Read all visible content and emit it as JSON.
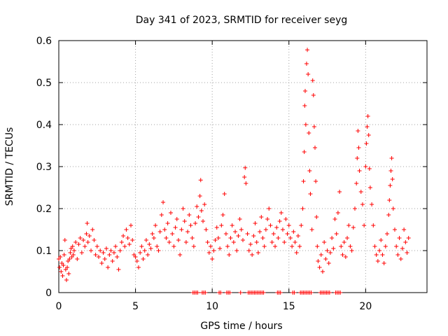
{
  "chart_data": {
    "type": "scatter",
    "title": "Day 341 of 2023, SRMTID for receiver seyg",
    "xlabel": "GPS time / hours",
    "ylabel": "SRMTID / TECUs",
    "xlim": [
      0,
      24
    ],
    "ylim": [
      0,
      0.6
    ],
    "x_ticks": [
      0,
      5,
      10,
      15,
      20
    ],
    "x_tick_labels": [
      "0",
      "5",
      "10",
      "15",
      "20"
    ],
    "y_ticks": [
      0,
      0.1,
      0.2,
      0.3,
      0.4,
      0.5,
      0.6
    ],
    "y_tick_labels": [
      "0",
      "0.1",
      "0.2",
      "0.3",
      "0.4",
      "0.5",
      "0.6"
    ],
    "grid": true,
    "marker": "+",
    "series": [
      {
        "name": "SRMTID",
        "color": "#ff0000",
        "points": [
          [
            0.0,
            0.08
          ],
          [
            0.05,
            0.06
          ],
          [
            0.1,
            0.085
          ],
          [
            0.15,
            0.05
          ],
          [
            0.2,
            0.07
          ],
          [
            0.25,
            0.04
          ],
          [
            0.3,
            0.065
          ],
          [
            0.35,
            0.09
          ],
          [
            0.4,
            0.125
          ],
          [
            0.45,
            0.055
          ],
          [
            0.5,
            0.03
          ],
          [
            0.55,
            0.06
          ],
          [
            0.6,
            0.075
          ],
          [
            0.65,
            0.045
          ],
          [
            0.7,
            0.08
          ],
          [
            0.75,
            0.095
          ],
          [
            0.8,
            0.105
          ],
          [
            0.85,
            0.085
          ],
          [
            0.9,
            0.11
          ],
          [
            0.95,
            0.09
          ],
          [
            1.0,
            0.1
          ],
          [
            1.1,
            0.12
          ],
          [
            1.2,
            0.08
          ],
          [
            1.3,
            0.115
          ],
          [
            1.4,
            0.13
          ],
          [
            1.5,
            0.095
          ],
          [
            1.6,
            0.125
          ],
          [
            1.7,
            0.11
          ],
          [
            1.8,
            0.14
          ],
          [
            1.85,
            0.165
          ],
          [
            1.9,
            0.12
          ],
          [
            2.0,
            0.135
          ],
          [
            2.1,
            0.1
          ],
          [
            2.2,
            0.15
          ],
          [
            2.3,
            0.125
          ],
          [
            2.4,
            0.09
          ],
          [
            2.5,
            0.11
          ],
          [
            2.6,
            0.085
          ],
          [
            2.7,
            0.1
          ],
          [
            2.8,
            0.07
          ],
          [
            2.9,
            0.095
          ],
          [
            3.0,
            0.08
          ],
          [
            3.1,
            0.105
          ],
          [
            3.2,
            0.06
          ],
          [
            3.3,
            0.09
          ],
          [
            3.4,
            0.1
          ],
          [
            3.5,
            0.075
          ],
          [
            3.6,
            0.095
          ],
          [
            3.7,
            0.11
          ],
          [
            3.8,
            0.085
          ],
          [
            3.9,
            0.055
          ],
          [
            4.0,
            0.1
          ],
          [
            4.1,
            0.12
          ],
          [
            4.2,
            0.135
          ],
          [
            4.3,
            0.11
          ],
          [
            4.4,
            0.15
          ],
          [
            4.5,
            0.13
          ],
          [
            4.6,
            0.115
          ],
          [
            4.7,
            0.16
          ],
          [
            4.8,
            0.125
          ],
          [
            4.9,
            0.09
          ],
          [
            5.0,
            0.085
          ],
          [
            5.1,
            0.075
          ],
          [
            5.2,
            0.06
          ],
          [
            5.3,
            0.095
          ],
          [
            5.4,
            0.11
          ],
          [
            5.5,
            0.08
          ],
          [
            5.6,
            0.1
          ],
          [
            5.7,
            0.125
          ],
          [
            5.8,
            0.09
          ],
          [
            5.9,
            0.115
          ],
          [
            6.0,
            0.105
          ],
          [
            6.1,
            0.14
          ],
          [
            6.2,
            0.13
          ],
          [
            6.3,
            0.16
          ],
          [
            6.4,
            0.11
          ],
          [
            6.5,
            0.1
          ],
          [
            6.6,
            0.145
          ],
          [
            6.7,
            0.185
          ],
          [
            6.8,
            0.215
          ],
          [
            6.9,
            0.15
          ],
          [
            7.0,
            0.13
          ],
          [
            7.1,
            0.165
          ],
          [
            7.2,
            0.12
          ],
          [
            7.3,
            0.19
          ],
          [
            7.4,
            0.14
          ],
          [
            7.5,
            0.11
          ],
          [
            7.6,
            0.155
          ],
          [
            7.7,
            0.175
          ],
          [
            7.8,
            0.125
          ],
          [
            7.9,
            0.09
          ],
          [
            8.0,
            0.15
          ],
          [
            8.1,
            0.2
          ],
          [
            8.2,
            0.17
          ],
          [
            8.3,
            0.12
          ],
          [
            8.4,
            0.145
          ],
          [
            8.5,
            0.185
          ],
          [
            8.6,
            0.16
          ],
          [
            8.7,
            0.13
          ],
          [
            8.8,
            0.11
          ],
          [
            8.9,
            0.165
          ],
          [
            9.0,
            0.205
          ],
          [
            9.1,
            0.18
          ],
          [
            9.2,
            0.23
          ],
          [
            9.25,
            0.268
          ],
          [
            9.3,
            0.195
          ],
          [
            9.4,
            0.17
          ],
          [
            9.5,
            0.21
          ],
          [
            9.6,
            0.15
          ],
          [
            9.7,
            0.12
          ],
          [
            9.8,
            0.095
          ],
          [
            9.9,
            0.11
          ],
          [
            10.0,
            0.08
          ],
          [
            10.1,
            0.1
          ],
          [
            10.2,
            0.125
          ],
          [
            10.3,
            0.155
          ],
          [
            10.4,
            0.13
          ],
          [
            10.5,
            0.105
          ],
          [
            10.6,
            0.16
          ],
          [
            10.7,
            0.185
          ],
          [
            10.8,
            0.235
          ],
          [
            10.9,
            0.14
          ],
          [
            11.0,
            0.11
          ],
          [
            11.1,
            0.09
          ],
          [
            11.2,
            0.13
          ],
          [
            11.3,
            0.16
          ],
          [
            11.4,
            0.12
          ],
          [
            11.5,
            0.145
          ],
          [
            11.6,
            0.1
          ],
          [
            11.7,
            0.135
          ],
          [
            11.8,
            0.175
          ],
          [
            11.9,
            0.15
          ],
          [
            12.0,
            0.125
          ],
          [
            12.1,
            0.275
          ],
          [
            12.15,
            0.297
          ],
          [
            12.2,
            0.26
          ],
          [
            12.3,
            0.14
          ],
          [
            12.4,
            0.1
          ],
          [
            12.5,
            0.115
          ],
          [
            12.6,
            0.09
          ],
          [
            12.7,
            0.135
          ],
          [
            12.8,
            0.165
          ],
          [
            12.9,
            0.12
          ],
          [
            13.0,
            0.095
          ],
          [
            13.1,
            0.145
          ],
          [
            13.2,
            0.18
          ],
          [
            13.3,
            0.13
          ],
          [
            13.4,
            0.11
          ],
          [
            13.5,
            0.15
          ],
          [
            13.6,
            0.175
          ],
          [
            13.7,
            0.2
          ],
          [
            13.8,
            0.16
          ],
          [
            13.9,
            0.12
          ],
          [
            14.0,
            0.14
          ],
          [
            14.1,
            0.11
          ],
          [
            14.2,
            0.155
          ],
          [
            14.3,
            0.13
          ],
          [
            14.4,
            0.17
          ],
          [
            14.5,
            0.19
          ],
          [
            14.6,
            0.15
          ],
          [
            14.7,
            0.12
          ],
          [
            14.8,
            0.175
          ],
          [
            14.9,
            0.14
          ],
          [
            15.0,
            0.16
          ],
          [
            15.1,
            0.13
          ],
          [
            15.2,
            0.11
          ],
          [
            15.3,
            0.145
          ],
          [
            15.4,
            0.12
          ],
          [
            15.5,
            0.095
          ],
          [
            15.6,
            0.135
          ],
          [
            15.7,
            0.11
          ],
          [
            15.8,
            0.16
          ],
          [
            15.9,
            0.2
          ],
          [
            15.95,
            0.265
          ],
          [
            16.0,
            0.335
          ],
          [
            16.03,
            0.445
          ],
          [
            16.06,
            0.48
          ],
          [
            16.1,
            0.4
          ],
          [
            16.15,
            0.545
          ],
          [
            16.2,
            0.578
          ],
          [
            16.25,
            0.52
          ],
          [
            16.3,
            0.38
          ],
          [
            16.35,
            0.29
          ],
          [
            16.4,
            0.235
          ],
          [
            16.5,
            0.15
          ],
          [
            16.55,
            0.505
          ],
          [
            16.6,
            0.47
          ],
          [
            16.65,
            0.395
          ],
          [
            16.7,
            0.345
          ],
          [
            16.75,
            0.265
          ],
          [
            16.8,
            0.18
          ],
          [
            16.85,
            0.11
          ],
          [
            16.9,
            0.075
          ],
          [
            17.0,
            0.06
          ],
          [
            17.1,
            0.09
          ],
          [
            17.2,
            0.05
          ],
          [
            17.3,
            0.12
          ],
          [
            17.4,
            0.08
          ],
          [
            17.5,
            0.1
          ],
          [
            17.6,
            0.07
          ],
          [
            17.7,
            0.095
          ],
          [
            17.8,
            0.13
          ],
          [
            17.9,
            0.105
          ],
          [
            18.0,
            0.175
          ],
          [
            18.1,
            0.14
          ],
          [
            18.2,
            0.19
          ],
          [
            18.3,
            0.24
          ],
          [
            18.4,
            0.11
          ],
          [
            18.5,
            0.09
          ],
          [
            18.6,
            0.12
          ],
          [
            18.7,
            0.085
          ],
          [
            18.8,
            0.13
          ],
          [
            18.9,
            0.16
          ],
          [
            19.0,
            0.11
          ],
          [
            19.1,
            0.1
          ],
          [
            19.2,
            0.155
          ],
          [
            19.3,
            0.2
          ],
          [
            19.4,
            0.26
          ],
          [
            19.45,
            0.32
          ],
          [
            19.5,
            0.385
          ],
          [
            19.55,
            0.345
          ],
          [
            19.6,
            0.29
          ],
          [
            19.7,
            0.24
          ],
          [
            19.8,
            0.21
          ],
          [
            19.9,
            0.16
          ],
          [
            20.0,
            0.3
          ],
          [
            20.05,
            0.355
          ],
          [
            20.1,
            0.395
          ],
          [
            20.15,
            0.42
          ],
          [
            20.2,
            0.375
          ],
          [
            20.25,
            0.295
          ],
          [
            20.3,
            0.25
          ],
          [
            20.4,
            0.21
          ],
          [
            20.5,
            0.16
          ],
          [
            20.6,
            0.11
          ],
          [
            20.7,
            0.09
          ],
          [
            20.8,
            0.075
          ],
          [
            20.9,
            0.1
          ],
          [
            21.0,
            0.125
          ],
          [
            21.1,
            0.09
          ],
          [
            21.2,
            0.07
          ],
          [
            21.3,
            0.11
          ],
          [
            21.4,
            0.14
          ],
          [
            21.5,
            0.185
          ],
          [
            21.55,
            0.22
          ],
          [
            21.6,
            0.255
          ],
          [
            21.65,
            0.29
          ],
          [
            21.7,
            0.32
          ],
          [
            21.75,
            0.27
          ],
          [
            21.8,
            0.2
          ],
          [
            21.9,
            0.15
          ],
          [
            22.0,
            0.11
          ],
          [
            22.1,
            0.09
          ],
          [
            22.2,
            0.13
          ],
          [
            22.3,
            0.08
          ],
          [
            22.4,
            0.105
          ],
          [
            22.5,
            0.15
          ],
          [
            22.6,
            0.12
          ],
          [
            22.7,
            0.095
          ],
          [
            22.8,
            0.13
          ]
        ]
      }
    ],
    "zero_points_x": [
      8.75,
      8.85,
      8.95,
      9.05,
      9.35,
      9.45,
      9.55,
      10.45,
      10.55,
      10.95,
      11.05,
      11.15,
      11.85,
      12.35,
      12.45,
      12.55,
      12.65,
      12.75,
      12.85,
      12.95,
      13.05,
      13.15,
      13.25,
      13.35,
      14.25,
      14.35,
      14.45,
      15.25,
      15.35,
      15.75,
      15.85,
      15.95,
      16.05,
      16.15,
      16.25,
      16.35,
      16.45,
      17.05,
      17.15,
      17.25,
      17.35,
      17.45,
      17.55,
      17.65,
      18.05,
      18.15,
      18.25,
      18.35
    ]
  }
}
